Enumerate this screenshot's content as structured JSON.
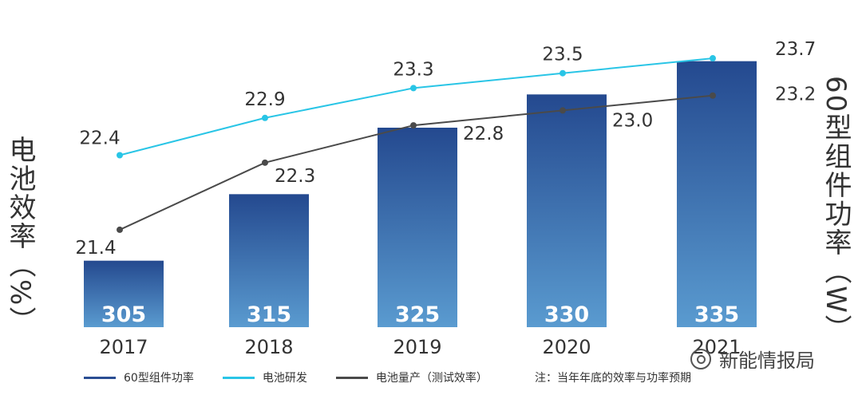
{
  "chart_data": {
    "type": "bar+line",
    "categories": [
      "2017",
      "2018",
      "2019",
      "2020",
      "2021"
    ],
    "bar_series": {
      "name": "60型组件功率",
      "values": [
        305,
        315,
        325,
        330,
        335
      ],
      "axis_label": "60型组件功率（W）",
      "range": [
        295,
        340
      ],
      "color": "#2a4e93"
    },
    "line_series": [
      {
        "name": "电池研发",
        "values": [
          22.4,
          22.9,
          23.3,
          23.5,
          23.7
        ],
        "labels": [
          "22.4",
          "22.9",
          "23.3",
          "23.5",
          "23.7"
        ],
        "color": "#29c5e6"
      },
      {
        "name": "电池量产（测试效率）",
        "values": [
          21.4,
          22.3,
          22.8,
          23.0,
          23.2
        ],
        "labels": [
          "21.4",
          "22.3",
          "22.8",
          "23.0",
          "23.2"
        ],
        "color": "#4a4a4a"
      }
    ],
    "bar_labels": [
      "305",
      "315",
      "325",
      "330",
      "335"
    ],
    "left_axis_label": "电池效率（%）",
    "left_range": [
      20.5,
      24.0
    ],
    "legend_position": "bottom",
    "grid": false
  },
  "legend": {
    "item1": "60型组件功率",
    "item2": "电池研发",
    "item3": "电池量产（测试效率）"
  },
  "note": "注：当年年底的效率与功率预期",
  "watermark": "新能情报局",
  "labels": {
    "left": "电池效率（%）",
    "right": "60型组件功率（W）"
  }
}
